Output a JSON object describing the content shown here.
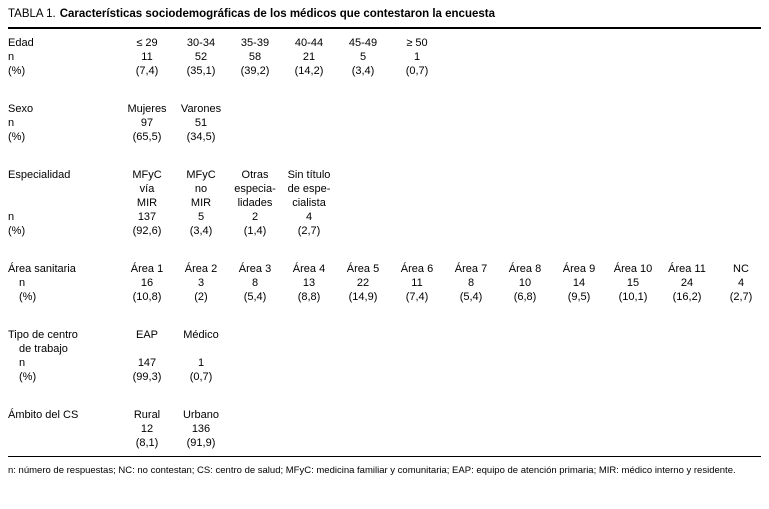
{
  "title": {
    "prefix": "TABLA 1.",
    "caption": "Características sociodemográficas de los médicos que contestaron la encuesta"
  },
  "table": {
    "num_data_columns": 12,
    "sections": [
      {
        "id": "edad",
        "rows": [
          {
            "label": "Edad",
            "indent": false,
            "cells": [
              "≤ 29",
              "30-34",
              "35-39",
              "40-44",
              "45-49",
              "≥ 50"
            ]
          },
          {
            "label": "n",
            "indent": false,
            "cells": [
              "11",
              "52",
              "58",
              "21",
              "5",
              "1"
            ]
          },
          {
            "label": "(%)",
            "indent": false,
            "cells": [
              "(7,4)",
              "(35,1)",
              "(39,2)",
              "(14,2)",
              "(3,4)",
              "(0,7)"
            ]
          }
        ]
      },
      {
        "id": "sexo",
        "rows": [
          {
            "label": "Sexo",
            "indent": false,
            "cells": [
              "Mujeres",
              "Varones"
            ]
          },
          {
            "label": "n",
            "indent": false,
            "cells": [
              "97",
              "51"
            ]
          },
          {
            "label": "(%)",
            "indent": false,
            "cells": [
              "(65,5)",
              "(34,5)"
            ]
          }
        ]
      },
      {
        "id": "especialidad",
        "rows": [
          {
            "label": "Especialidad",
            "indent": false,
            "cells": [
              "MFyC",
              "MFyC",
              "Otras",
              "Sin título"
            ]
          },
          {
            "label": "",
            "indent": false,
            "cells": [
              "vía",
              "no",
              "especia-",
              "de espe-"
            ]
          },
          {
            "label": "",
            "indent": false,
            "cells": [
              "MIR",
              "MIR",
              "lidades",
              "cialista"
            ]
          },
          {
            "label": "n",
            "indent": false,
            "cells": [
              "137",
              "5",
              "2",
              "4"
            ]
          },
          {
            "label": "(%)",
            "indent": false,
            "cells": [
              "(92,6)",
              "(3,4)",
              "(1,4)",
              "(2,7)"
            ]
          }
        ]
      },
      {
        "id": "area-sanitaria",
        "rows": [
          {
            "label": "Área sanitaria",
            "indent": false,
            "cells": [
              "Área 1",
              "Área 2",
              "Área 3",
              "Área 4",
              "Área 5",
              "Área 6",
              "Área 7",
              "Área 8",
              "Área 9",
              "Área 10",
              "Área 11",
              "NC"
            ]
          },
          {
            "label": "n",
            "indent": true,
            "cells": [
              "16",
              "3",
              "8",
              "13",
              "22",
              "11",
              "8",
              "10",
              "14",
              "15",
              "24",
              "4"
            ]
          },
          {
            "label": "(%)",
            "indent": true,
            "cells": [
              "(10,8)",
              "(2)",
              "(5,4)",
              "(8,8)",
              "(14,9)",
              "(7,4)",
              "(5,4)",
              "(6,8)",
              "(9,5)",
              "(10,1)",
              "(16,2)",
              "(2,7)"
            ]
          }
        ]
      },
      {
        "id": "tipo-centro",
        "rows": [
          {
            "label": "Tipo de centro",
            "indent": false,
            "cells": [
              "EAP",
              "Médico"
            ]
          },
          {
            "label": "de trabajo",
            "indent": true,
            "cells": []
          },
          {
            "label": "n",
            "indent": true,
            "cells": [
              "147",
              "1"
            ]
          },
          {
            "label": "(%)",
            "indent": true,
            "cells": [
              "(99,3)",
              "(0,7)"
            ]
          }
        ]
      },
      {
        "id": "ambito-cs",
        "rows": [
          {
            "label": "Ámbito del CS",
            "indent": false,
            "cells": [
              "Rural",
              "Urbano"
            ]
          },
          {
            "label": "",
            "indent": false,
            "cells": [
              "12",
              "136"
            ]
          },
          {
            "label": "",
            "indent": false,
            "cells": [
              "(8,1)",
              "(91,9)"
            ]
          }
        ]
      }
    ]
  },
  "footnote": "n: número de respuestas; NC: no contestan; CS: centro de salud; MFyC: medicina familiar y comunitaria; EAP: equipo de atención primaria; MIR: médico interno y residente."
}
